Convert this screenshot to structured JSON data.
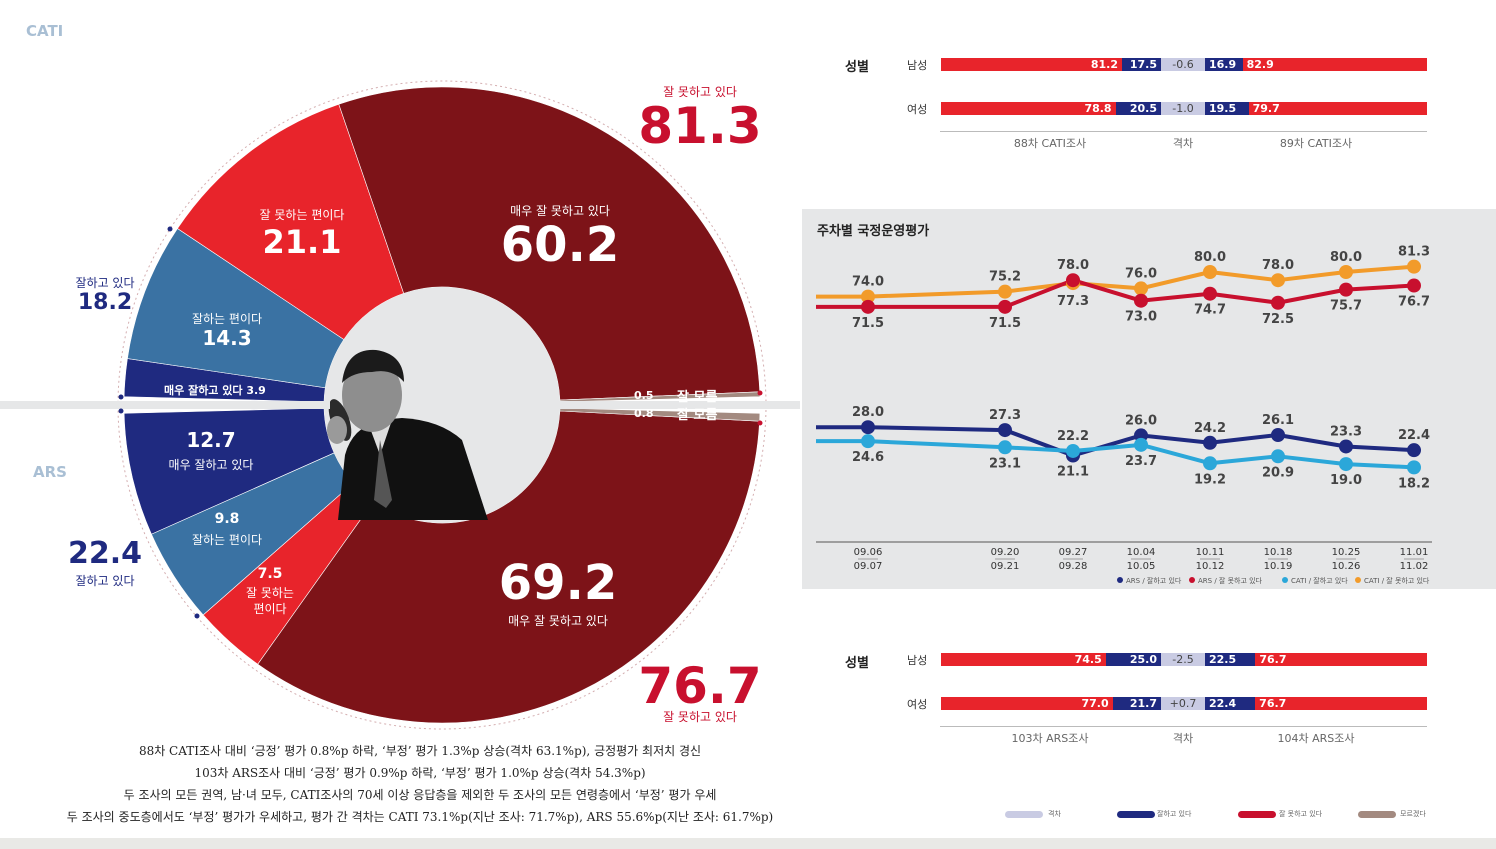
{
  "sections": {
    "cati": "CATI",
    "ars": "ARS"
  },
  "donut": {
    "cati_total_neg": {
      "value": "81.3",
      "label": "잘 못하고 있다"
    },
    "cati_total_pos": {
      "value": "18.2",
      "label": "잘하고 있다"
    },
    "ars_total_neg": {
      "value": "76.7",
      "label": "잘 못하고 있다"
    },
    "ars_total_pos": {
      "value": "22.4",
      "label": "잘하고 있다"
    },
    "cati_slices": [
      {
        "label": "매우 잘 못하고 있다",
        "value": "60.2"
      },
      {
        "label": "잘 못하는 편이다",
        "value": "21.1"
      },
      {
        "label": "잘하는 편이다",
        "value": "14.3"
      },
      {
        "label": "매우 잘하고 있다",
        "value": "3.9"
      },
      {
        "label": "잘 모름",
        "value": "0.5"
      }
    ],
    "ars_slices": [
      {
        "label": "매우 잘하고 있다",
        "value": "12.7"
      },
      {
        "label": "잘하는 편이다",
        "value": "9.8"
      },
      {
        "label": "잘 못하는",
        "label2": "편이다",
        "value": "7.5"
      },
      {
        "label": "매우 잘 못하고 있다",
        "value": "69.2"
      },
      {
        "label": "잘 모름",
        "value": "0.8"
      }
    ]
  },
  "gender_cati": {
    "heading": "성별",
    "rows": [
      {
        "label": "남성",
        "left_neg": "81.2",
        "left_pos": "17.5",
        "gap": "-0.6",
        "right_pos": "16.9",
        "right_neg": "82.9"
      },
      {
        "label": "여성",
        "left_neg": "78.8",
        "left_pos": "20.5",
        "gap": "-1.0",
        "right_pos": "19.5",
        "right_neg": "79.7"
      }
    ],
    "footer": {
      "left": "88차 CATI조사",
      "mid": "격차",
      "right": "89차 CATI조사"
    }
  },
  "gender_ars": {
    "heading": "성별",
    "rows": [
      {
        "label": "남성",
        "left_neg": "74.5",
        "left_pos": "25.0",
        "gap": "-2.5",
        "right_pos": "22.5",
        "right_neg": "76.7"
      },
      {
        "label": "여성",
        "left_neg": "77.0",
        "left_pos": "21.7",
        "gap": "+0.7",
        "right_pos": "22.4",
        "right_neg": "76.7"
      }
    ],
    "footer": {
      "left": "103차 ARS조사",
      "mid": "격차",
      "right": "104차 ARS조사"
    }
  },
  "legend_bottom": [
    "격차",
    "잘하고 있다",
    "잘 못하고 있다",
    "모르겠다"
  ],
  "notes": [
    "88차 CATI조사 대비 ‘긍정’ 평가 0.8%p 하락, ‘부정’ 평가 1.3%p 상승(격차 63.1%p), 긍정평가 최저치 경신",
    "103차 ARS조사 대비 ‘긍정’ 평가 0.9%p 하락, ‘부정’ 평가 1.0%p 상승(격차 54.3%p)",
    "두 조사의 모든 권역, 남·녀 모두, CATI조사의 70세 이상 응답층을 제외한 두 조사의 모든 연령층에서 ‘부정’ 평가 우세",
    "두 조사의 중도층에서도 ‘부정’ 평가가 우세하고, 평가 간 격차는 CATI 73.1%p(지난 조사: 71.7%p), ARS 55.6%p(지난 조사: 61.7%p)"
  ],
  "colors": {
    "dark_red": "#7d1318",
    "red": "#e8242b",
    "blue": "#3a72a3",
    "navy": "#1f2a80",
    "orange": "#f29b2a",
    "cyan": "#2ba7d9",
    "brown": "#a38a80",
    "gap": "#c9cbe3"
  },
  "chart_data": {
    "type": "line",
    "title": "주차별 국정운영평가",
    "x": [
      [
        "09.06",
        "09.07"
      ],
      [
        "09.20",
        "09.21"
      ],
      [
        "09.27",
        "09.28"
      ],
      [
        "10.04",
        "10.05"
      ],
      [
        "10.11",
        "10.12"
      ],
      [
        "10.18",
        "10.19"
      ],
      [
        "10.25",
        "10.26"
      ],
      [
        "11.01",
        "11.02"
      ]
    ],
    "series": [
      {
        "name": "CATI / 잘 못하고 있다",
        "values": [
          74.0,
          75.2,
          77.3,
          76.0,
          80.0,
          78.0,
          80.0,
          81.3
        ],
        "labels": [
          "74.0",
          "75.2",
          "77.3",
          "76.0",
          "80.0",
          "78.0",
          "80.0",
          "81.3"
        ]
      },
      {
        "name": "ARS / 잘 못하고 있다",
        "values": [
          71.5,
          71.5,
          78.0,
          73.0,
          74.7,
          72.5,
          75.7,
          76.7
        ],
        "labels": [
          "71.5",
          "71.5",
          "78.0",
          "73.0",
          "74.7",
          "72.5",
          "75.7",
          "76.7"
        ]
      },
      {
        "name": "ARS / 잘하고 있다",
        "values": [
          28.0,
          27.3,
          21.1,
          26.0,
          24.2,
          26.1,
          23.3,
          22.4
        ],
        "labels": [
          "28.0",
          "27.3",
          "21.1",
          "26.0",
          "24.2",
          "26.1",
          "23.3",
          "22.4"
        ]
      },
      {
        "name": "CATI / 잘하고 있다",
        "values": [
          24.6,
          23.1,
          22.2,
          23.7,
          19.2,
          20.9,
          19.0,
          18.2
        ],
        "labels": [
          "24.6",
          "23.1",
          "22.2",
          "23.7",
          "19.2",
          "20.9",
          "19.0",
          "18.2"
        ]
      }
    ],
    "legend": [
      "ARS / 잘하고 있다",
      "ARS / 잘 못하고 있다",
      "CATI / 잘하고 있다",
      "CATI / 잘 못하고 있다"
    ],
    "legend_position": "bottom-right"
  }
}
